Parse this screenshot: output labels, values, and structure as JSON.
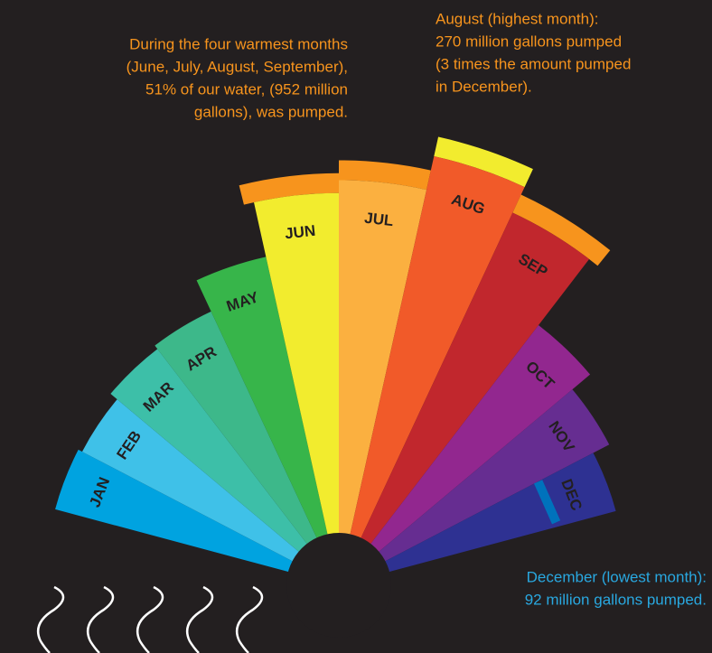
{
  "chart_data": {
    "type": "radial_bar",
    "categories": [
      "JAN",
      "FEB",
      "MAR",
      "APR",
      "MAY",
      "JUN",
      "JUL",
      "AUG",
      "SEP",
      "OCT",
      "NOV",
      "DEC"
    ],
    "values": [
      100,
      95,
      105,
      110,
      150,
      215,
      230,
      270,
      237,
      140,
      113,
      92
    ],
    "colors": [
      "#00a3e0",
      "#3fc1e8",
      "#3dbfa8",
      "#3db88a",
      "#37b54a",
      "#f2ec2e",
      "#fbb040",
      "#f15a29",
      "#c1272d",
      "#92278f",
      "#662d91",
      "#2e3192"
    ],
    "annotations": [
      {
        "color": "#f7941d",
        "lines": [
          "During the four warmest months",
          "(June, July, August, September),",
          "51% of our water, (952 million",
          "gallons), was pumped."
        ]
      },
      {
        "color": "#f7941d",
        "lines": [
          "August (highest month):",
          "270 million gallons pumped",
          "(3 times the amount pumped",
          "in December)."
        ]
      },
      {
        "color": "#29a8e0",
        "lines": [
          "December (lowest month):",
          "92 million gallons pumped."
        ]
      }
    ]
  }
}
